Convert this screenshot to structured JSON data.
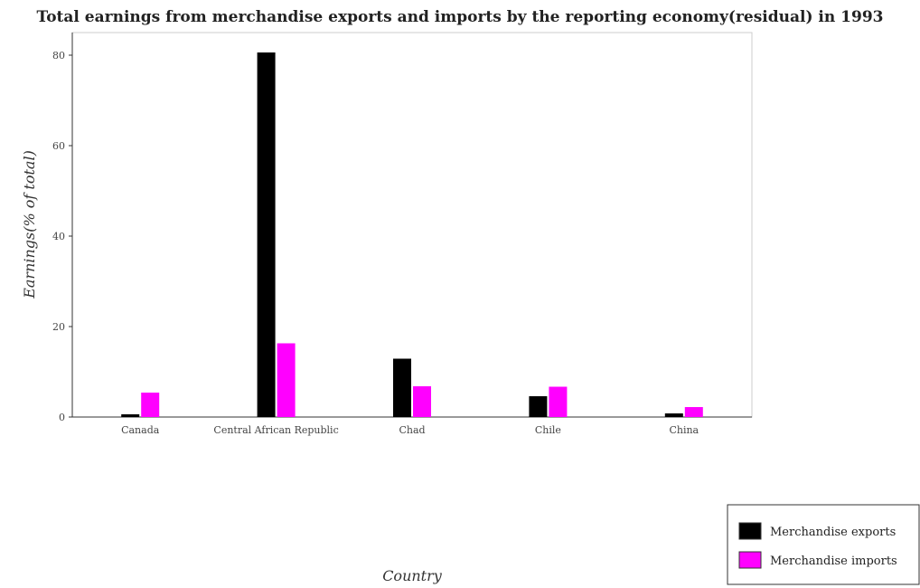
{
  "chart_data": {
    "type": "bar",
    "title": "Total earnings from merchandise exports and imports by the reporting economy(residual) in 1993",
    "xlabel": "Country",
    "ylabel": "Earnings(% of total)",
    "categories": [
      "Canada",
      "Central African Republic",
      "Chad",
      "Chile",
      "China"
    ],
    "series": [
      {
        "name": "Merchandise exports",
        "color": "#000000",
        "values": [
          0.6,
          80.6,
          12.9,
          4.6,
          0.8
        ]
      },
      {
        "name": "Merchandise imports",
        "color": "#ff00ff",
        "values": [
          5.4,
          16.3,
          6.8,
          6.7,
          2.2
        ]
      }
    ],
    "ylim": [
      0,
      85
    ],
    "yticks": [
      0,
      20,
      40,
      60,
      80
    ],
    "grid": false,
    "legend": "bottom-right"
  }
}
